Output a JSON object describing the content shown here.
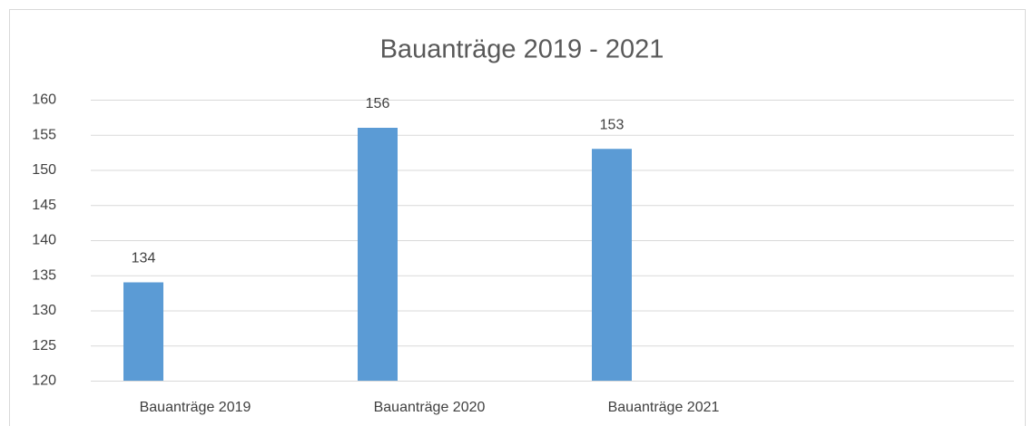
{
  "chart_data": {
    "type": "bar",
    "title": "Bauanträge 2019 - 2021",
    "categories": [
      "Bauanträge 2019",
      "Bauanträge 2020",
      "Bauanträge 2021"
    ],
    "values": [
      134,
      156,
      153
    ],
    "color": "#5b9bd5",
    "ylim": [
      120,
      160
    ],
    "yticks": [
      120,
      125,
      130,
      135,
      140,
      145,
      150,
      155,
      160
    ],
    "grid": true
  }
}
